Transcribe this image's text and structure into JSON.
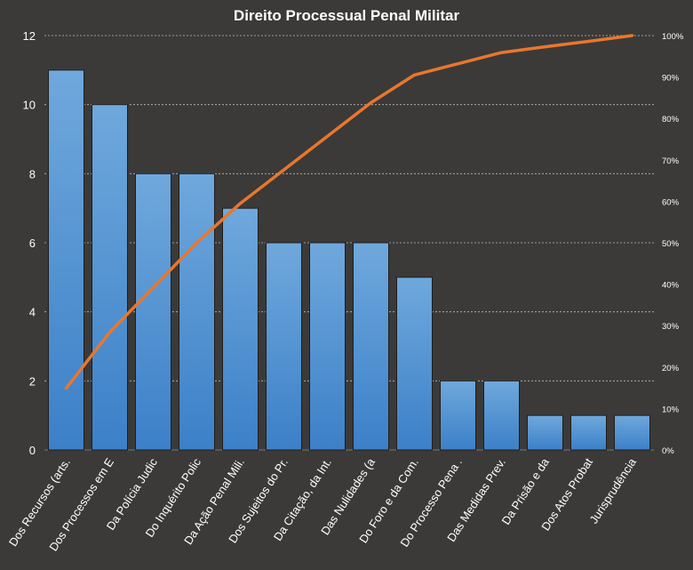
{
  "chart_data": {
    "type": "bar",
    "title": "Direito  Processual  Penal Militar",
    "categories": [
      "Dos Recursos (arts.",
      "Dos Processos em E",
      "Da Polícia Judic",
      "Do Inquérito Polic",
      "Da Ação Penal Mili.",
      "Dos Sujeitos do Pr.",
      "Da Citação, da Int.",
      "Das Nulidades (a",
      "Do Foro e da Com.",
      "Do Processo Pena .",
      "Das Medidas Prev.",
      "Da Prisão e da",
      "Dos Atos Probat",
      "Jurisprudência"
    ],
    "series": [
      {
        "type": "bar",
        "values": [
          11,
          10,
          8,
          8,
          7,
          6,
          6,
          6,
          5,
          2,
          2,
          1,
          1,
          1
        ]
      },
      {
        "type": "line",
        "axis": "right",
        "values": [
          14.9,
          28.4,
          39.2,
          50.0,
          59.5,
          67.6,
          75.7,
          83.8,
          90.5,
          93.2,
          95.9,
          97.3,
          98.6,
          100.0
        ]
      }
    ],
    "y_left": {
      "ylim": [
        0,
        12
      ],
      "ticks": [
        "0",
        "2",
        "4",
        "6",
        "8",
        "10",
        "12"
      ]
    },
    "y_right": {
      "ylim": [
        0,
        100
      ],
      "ticks": [
        "0%",
        "10%",
        "20%",
        "30%",
        "40%",
        "50%",
        "60%",
        "70%",
        "80%",
        "90%",
        "100%"
      ]
    },
    "grid": true,
    "legend": "none",
    "colors": {
      "bar_top": "#6fa8dc",
      "bar_bottom": "#3c80c8",
      "line": "#e8772e",
      "background": "#3b3a38",
      "grid": "#bdbdbd"
    }
  }
}
